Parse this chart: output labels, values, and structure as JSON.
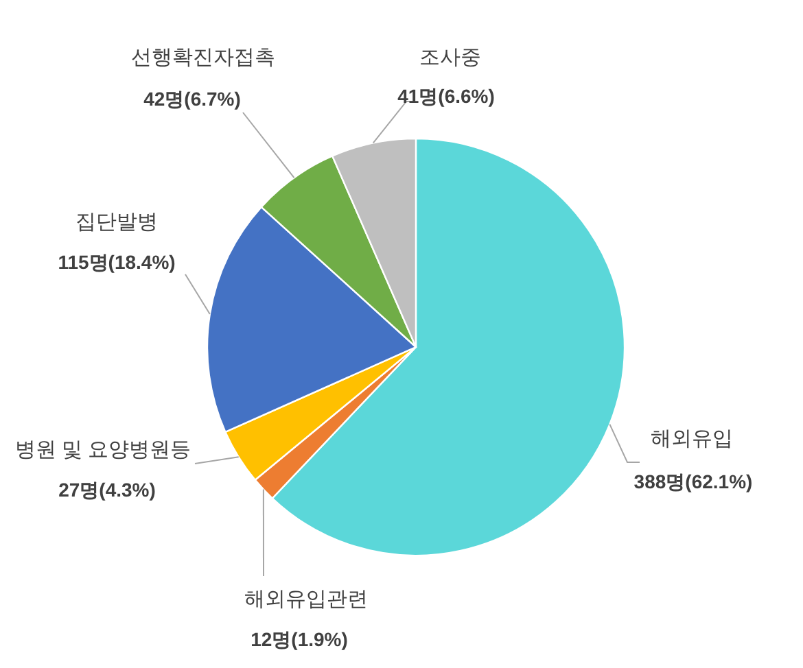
{
  "chart_data": {
    "type": "pie",
    "categories": [
      "해외유입",
      "해외유입관련",
      "병원 및 요양병원등",
      "집단발병",
      "선행확진자접촉",
      "조사중"
    ],
    "values": [
      388,
      12,
      27,
      115,
      42,
      41
    ],
    "colors": [
      "#5bd7d9",
      "#ed7d31",
      "#ffc000",
      "#4472c4",
      "#70ad47",
      "#bfbfbf"
    ],
    "value_labels": [
      "388명(62.1%)",
      "12명(1.9%)",
      "27명(4.3%)",
      "115명(18.4%)",
      "42명(6.7%)",
      "41명(6.6%)"
    ]
  }
}
